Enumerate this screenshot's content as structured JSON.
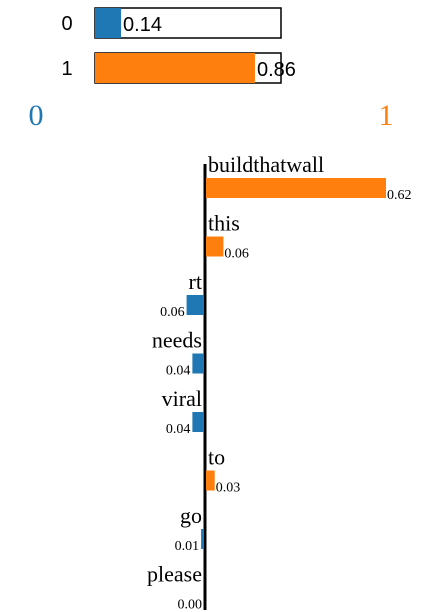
{
  "colors": {
    "class0": "#1f77b4",
    "class1": "#ff7f0e"
  },
  "chart_data": [
    {
      "type": "bar",
      "orientation": "horizontal",
      "categories": [
        "0",
        "1"
      ],
      "values": [
        0.14,
        0.86
      ],
      "value_labels": [
        "0.14",
        "0.86"
      ],
      "xlim": [
        0,
        1
      ]
    },
    {
      "type": "bar",
      "orientation": "horizontal",
      "class_labels": [
        "0",
        "1"
      ],
      "words": [
        "buildthatwall",
        "this",
        "rt",
        "needs",
        "viral",
        "to",
        "go",
        "please"
      ],
      "weights": [
        0.62,
        0.06,
        0.06,
        0.04,
        0.04,
        0.03,
        0.01,
        0.0
      ],
      "weight_labels": [
        "0.62",
        "0.06",
        "0.06",
        "0.04",
        "0.04",
        "0.03",
        "0.01",
        "0.00"
      ],
      "sides": [
        "1",
        "1",
        "0",
        "0",
        "0",
        "1",
        "0",
        "0"
      ]
    }
  ]
}
